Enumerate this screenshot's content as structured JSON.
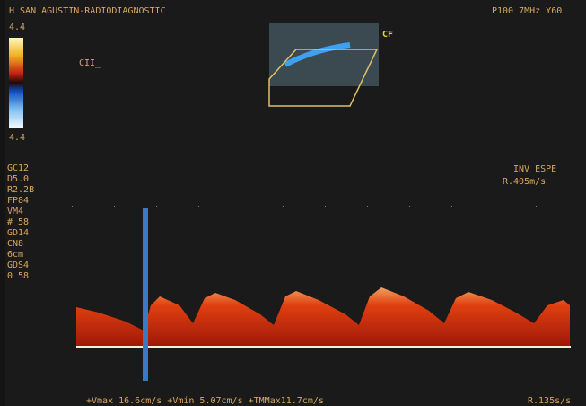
{
  "header": {
    "title": "H SAN AGUSTIN-RADIODIAGNOSTIC",
    "probe": "P100  7MHz  Y60"
  },
  "color_scale": {
    "top": "4.4",
    "bottom": "4.4"
  },
  "label": "CII_",
  "inset_label": "CF",
  "parameters": [
    "GC12",
    "D5.0",
    "R2.2B",
    "FP84",
    "VM4",
    "# 58",
    "GD14",
    "CN8",
    "6cm",
    "GDS4",
    "0 58"
  ],
  "right_panel": {
    "mode": "INV ESPE",
    "rate": "R.405m/s"
  },
  "measurements": {
    "text": "+Vmax 16.6cm/s  +Vmin 5.07cm/s  +TMMax11.7cm/s",
    "rate": "R.135s/s"
  }
}
